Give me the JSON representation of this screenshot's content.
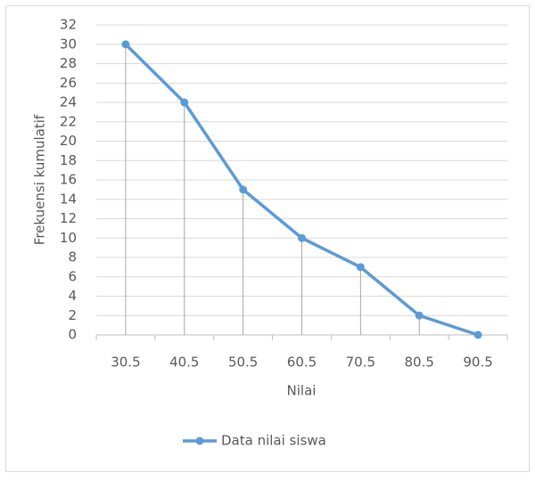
{
  "chart_data": {
    "type": "line",
    "x_label": "Nilai",
    "y_label": "Frekuensi kumulatif",
    "categories": [
      "30.5",
      "40.5",
      "50.5",
      "60.5",
      "70.5",
      "80.5",
      "90.5"
    ],
    "series": [
      {
        "name": "Data nilai siswa",
        "color": "#5b9bd5",
        "values": [
          30,
          24,
          15,
          10,
          7,
          2,
          0
        ]
      }
    ],
    "ylim": [
      0,
      32
    ],
    "yticks": [
      0,
      2,
      4,
      6,
      8,
      10,
      12,
      14,
      16,
      18,
      20,
      22,
      24,
      26,
      28,
      30,
      32
    ],
    "grid": true,
    "drop_lines": true,
    "legend": "bottom"
  }
}
